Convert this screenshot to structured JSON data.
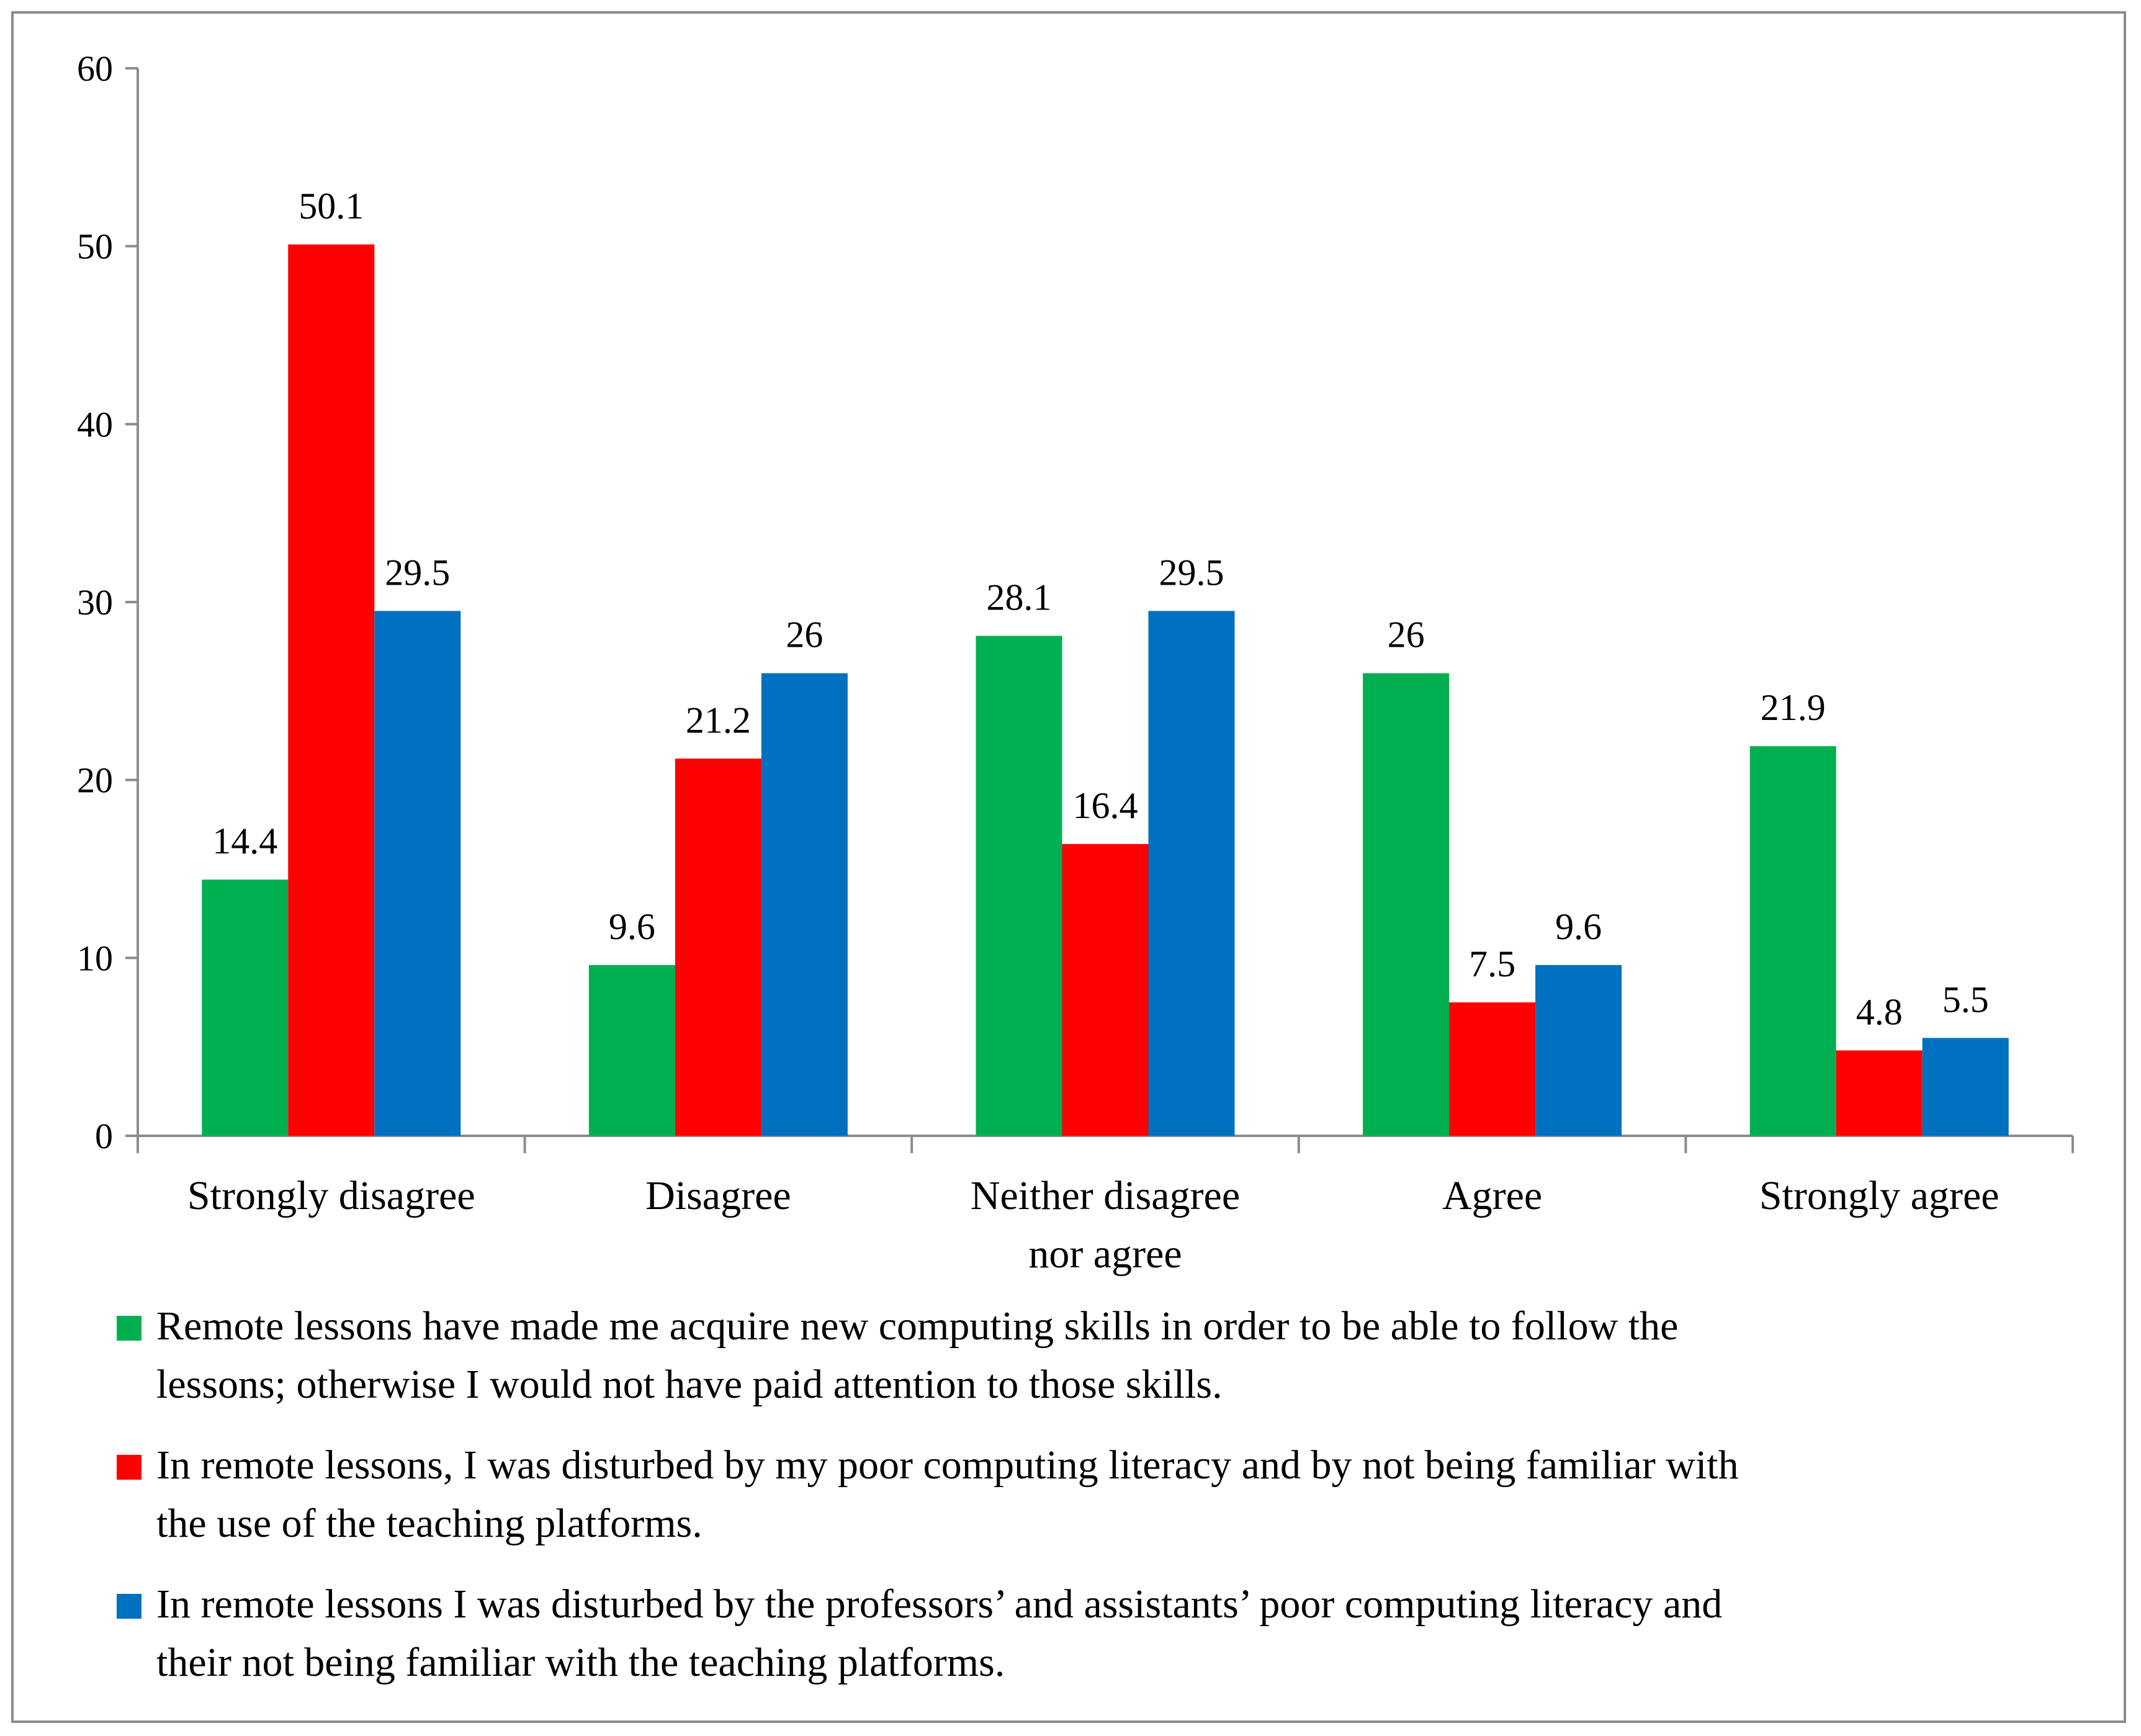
{
  "chart_data": {
    "type": "bar",
    "title": "",
    "xlabel": "",
    "ylabel": "",
    "ylim": [
      0,
      60
    ],
    "yticks": [
      "0",
      "10",
      "20",
      "30",
      "40",
      "50",
      "60"
    ],
    "grid": false,
    "legend_position": "bottom",
    "categories": [
      [
        "Strongly disagree"
      ],
      [
        "Disagree"
      ],
      [
        "Neither disagree",
        "nor agree"
      ],
      [
        "Agree"
      ],
      [
        "Strongly agree"
      ]
    ],
    "series": [
      {
        "name": "Remote lessons have made me acquire new computing skills in order to be able to follow the lessons; otherwise I would not have paid attention to those skills.",
        "legend_lines": [
          "Remote lessons have made me acquire new computing skills in order to be able to follow the",
          "lessons; otherwise I would not have paid attention to those skills."
        ],
        "color": "#00b050",
        "values": [
          14.4,
          9.6,
          28.1,
          26,
          21.9
        ],
        "labels": [
          "14.4",
          "9.6",
          "28.1",
          "26",
          "21.9"
        ]
      },
      {
        "name": "In remote lessons, I was disturbed by my poor computing literacy and by not being familiar with the use of the teaching platforms.",
        "legend_lines": [
          "In remote lessons, I was disturbed by my poor computing literacy and by not being familiar with",
          "the use of the teaching platforms."
        ],
        "color": "#ff0000",
        "values": [
          50.1,
          21.2,
          16.4,
          7.5,
          4.8
        ],
        "labels": [
          "50.1",
          "21.2",
          "16.4",
          "7.5",
          "4.8"
        ]
      },
      {
        "name": "In remote lessons I was disturbed by the professors’ and assistants’ poor computing literacy and their not being familiar with the teaching platforms.",
        "legend_lines": [
          "In remote lessons I was disturbed by the professors’ and assistants’ poor computing literacy and",
          "their not being familiar with the teaching platforms."
        ],
        "color": "#0070c0",
        "values": [
          29.5,
          26,
          29.5,
          9.6,
          5.5
        ],
        "labels": [
          "29.5",
          "26",
          "29.5",
          "9.6",
          "5.5"
        ]
      }
    ]
  }
}
